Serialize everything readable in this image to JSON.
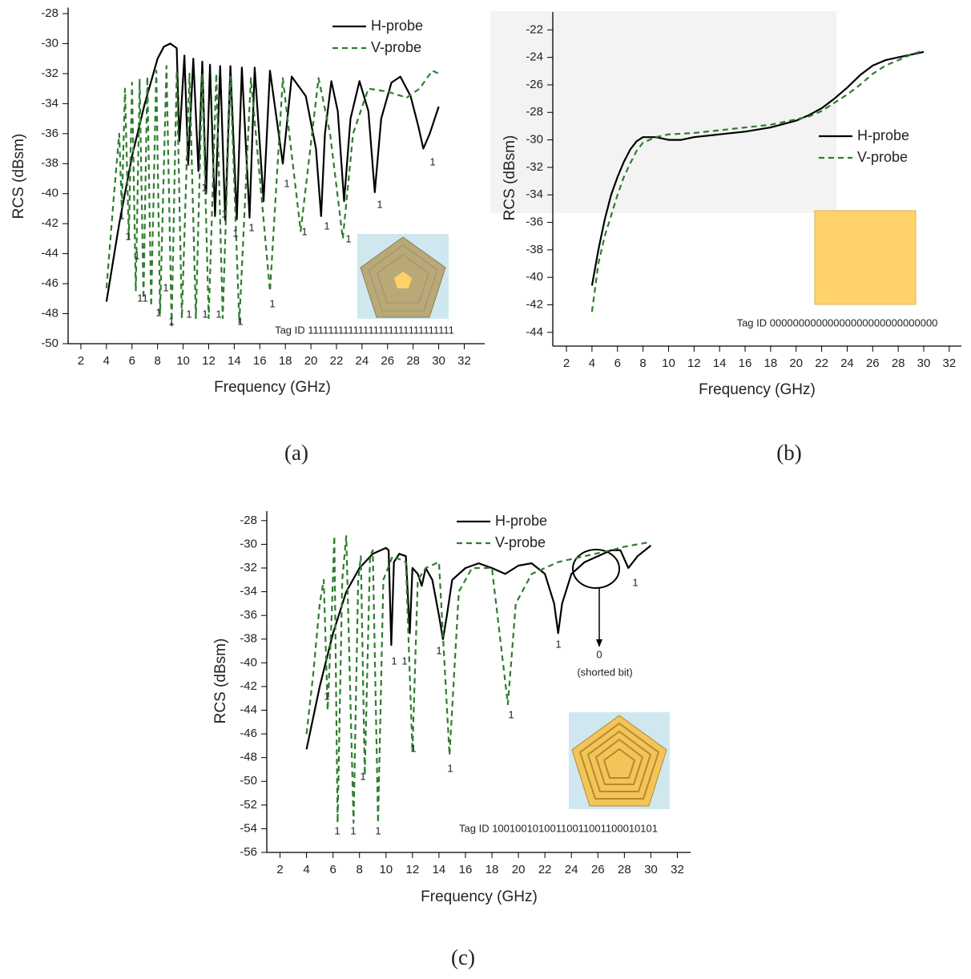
{
  "chart_data": [
    {
      "type": "line",
      "caption": "(a)",
      "xlabel": "Frequency (GHz)",
      "ylabel": "RCS (dBsm)",
      "xlim": [
        1,
        33.6
      ],
      "xticks": [
        2,
        4,
        6,
        8,
        10,
        12,
        14,
        16,
        18,
        20,
        22,
        24,
        26,
        28,
        30,
        32
      ],
      "ylim": [
        -50,
        -27.6
      ],
      "yticks": [
        -28,
        -30,
        -32,
        -34,
        -36,
        -38,
        -40,
        -42,
        -44,
        -46,
        -48,
        -50
      ],
      "series": [
        {
          "name": "H-probe",
          "color": "#000000",
          "linestyle": "solid",
          "x": [
            4,
            5,
            6,
            7,
            8,
            8.5,
            9,
            9.5,
            9.7,
            10.1,
            10.4,
            10.8,
            11.2,
            11.5,
            11.8,
            12.1,
            12.5,
            12.9,
            13.3,
            13.7,
            14.2,
            14.6,
            15.2,
            15.6,
            16.3,
            16.8,
            17.8,
            18.5,
            19.6,
            20.4,
            20.8,
            21.1,
            21.6,
            22.1,
            22.6,
            23.1,
            23.8,
            24.5,
            25,
            25.5,
            26.3,
            27,
            27.8,
            28.4,
            28.8,
            29.3,
            30
          ],
          "values": [
            -47.2,
            -42,
            -37.5,
            -34,
            -31,
            -30.2,
            -30,
            -30.3,
            -36.5,
            -30.8,
            -38,
            -31,
            -38.5,
            -31.2,
            -40,
            -31.4,
            -41.5,
            -31.5,
            -41.8,
            -31.5,
            -41.7,
            -31.6,
            -41.6,
            -31.6,
            -40.5,
            -31.8,
            -38,
            -32.2,
            -33.5,
            -37,
            -41.5,
            -36,
            -32.5,
            -34.5,
            -40.5,
            -35,
            -32.5,
            -34.5,
            -39.9,
            -35,
            -32.6,
            -32.2,
            -33.5,
            -35.5,
            -37,
            -36,
            -34.2
          ]
        },
        {
          "name": "V-probe",
          "color": "#2f7d2f",
          "linestyle": "dashed",
          "x": [
            4,
            4.6,
            5.0,
            5.2,
            5.45,
            5.75,
            6.0,
            6.3,
            6.6,
            6.9,
            7.2,
            7.5,
            7.9,
            8.2,
            8.7,
            9.1,
            9.5,
            9.9,
            10.5,
            11.0,
            11.5,
            12.0,
            12.6,
            13.1,
            13.7,
            14.4,
            15.3,
            16.8,
            17.8,
            19.2,
            20.6,
            21.5,
            22.5,
            23.3,
            24.5,
            26,
            27.5,
            28.5,
            29.5,
            30
          ],
          "values": [
            -46.3,
            -40,
            -36,
            -41,
            -33,
            -43,
            -32.6,
            -46.5,
            -32.4,
            -47,
            -32.2,
            -47.5,
            -31.8,
            -48,
            -31.5,
            -48.8,
            -31.8,
            -48.3,
            -32,
            -48.3,
            -32,
            -48.3,
            -32,
            -48.3,
            -32.2,
            -48.6,
            -32.3,
            -46.5,
            -32.3,
            -42.5,
            -32.3,
            -36,
            -43,
            -36,
            -33,
            -33.2,
            -33.6,
            -33,
            -31.8,
            -32
          ]
        }
      ],
      "tag_id": "Tag ID 11111111111111111111111111111",
      "annotations": [
        "1",
        "1",
        "1",
        "11",
        "1",
        "1",
        "1",
        "1",
        "1",
        "1",
        "1",
        "1",
        "1",
        "1",
        "1",
        "1",
        "1",
        "1",
        "1",
        "1",
        "1",
        "1",
        "1"
      ]
    },
    {
      "type": "line",
      "caption": "(b)",
      "xlabel": "Frequency (GHz)",
      "ylabel": "RCS (dBsm)",
      "xlim": [
        0.93,
        32.95
      ],
      "xticks": [
        2,
        4,
        6,
        8,
        10,
        12,
        14,
        16,
        18,
        20,
        22,
        24,
        26,
        28,
        30,
        32
      ],
      "ylim": [
        -45,
        -20.7
      ],
      "yticks": [
        -22,
        -24,
        -26,
        -28,
        -30,
        -32,
        -34,
        -36,
        -38,
        -40,
        -42,
        -44
      ],
      "series": [
        {
          "name": "H-probe",
          "color": "#000000",
          "linestyle": "solid",
          "x": [
            4,
            4.5,
            5,
            5.5,
            6,
            6.5,
            7,
            7.5,
            8,
            9,
            10,
            11,
            12,
            14,
            16,
            18,
            20,
            21,
            22,
            23,
            24,
            25,
            26,
            27,
            28,
            29,
            30
          ],
          "values": [
            -40.6,
            -38,
            -35.8,
            -34,
            -32.7,
            -31.6,
            -30.7,
            -30.1,
            -29.8,
            -29.8,
            -30,
            -30,
            -29.8,
            -29.6,
            -29.4,
            -29.1,
            -28.6,
            -28.2,
            -27.7,
            -27,
            -26.2,
            -25.3,
            -24.6,
            -24.2,
            -24,
            -23.8,
            -23.6
          ]
        },
        {
          "name": "V-probe",
          "color": "#2f7d2f",
          "linestyle": "dashed",
          "x": [
            4,
            4.5,
            5,
            5.5,
            6,
            6.5,
            7,
            7.5,
            8,
            9,
            10,
            12,
            14,
            16,
            18,
            20,
            21,
            22,
            23,
            24,
            25,
            26,
            27,
            28,
            29,
            30
          ],
          "values": [
            -42.5,
            -39,
            -37,
            -35.5,
            -34,
            -32.7,
            -31.7,
            -30.8,
            -30.2,
            -29.8,
            -29.6,
            -29.5,
            -29.3,
            -29.1,
            -28.9,
            -28.5,
            -28.3,
            -27.9,
            -27.3,
            -26.7,
            -26,
            -25.2,
            -24.6,
            -24.2,
            -23.8,
            -23.5
          ]
        }
      ],
      "tag_id": "Tag ID 00000000000000000000000000000",
      "annotations": []
    },
    {
      "type": "line",
      "caption": "(c)",
      "xlabel": "Frequency (GHz)",
      "ylabel": "RCS (dBsm)",
      "xlim": [
        1,
        33
      ],
      "xticks": [
        2,
        4,
        6,
        8,
        10,
        12,
        14,
        16,
        18,
        20,
        22,
        24,
        26,
        28,
        30,
        32
      ],
      "ylim": [
        -56,
        -27.2
      ],
      "yticks": [
        -28,
        -30,
        -32,
        -34,
        -36,
        -38,
        -40,
        -42,
        -44,
        -46,
        -48,
        -50,
        -52,
        -54,
        -56
      ],
      "series": [
        {
          "name": "H-probe",
          "color": "#000000",
          "linestyle": "solid",
          "x": [
            4,
            5,
            6,
            7,
            8,
            9,
            10,
            10.2,
            10.4,
            10.6,
            11,
            11.5,
            11.8,
            12,
            12.4,
            12.7,
            13,
            13.5,
            14,
            14.3,
            14.6,
            15,
            16,
            17,
            18,
            19,
            20,
            21,
            22,
            22.7,
            23,
            23.3,
            24,
            25,
            26,
            27,
            27.7,
            28.3,
            29,
            30
          ],
          "values": [
            -47.3,
            -42,
            -37.5,
            -34,
            -32,
            -30.8,
            -30.3,
            -30.5,
            -38.5,
            -31.5,
            -30.8,
            -31,
            -37.5,
            -32,
            -32.5,
            -33.5,
            -32,
            -33,
            -36,
            -38,
            -36,
            -33,
            -32,
            -31.6,
            -32,
            -32.5,
            -31.8,
            -31.6,
            -32.5,
            -35,
            -37.5,
            -35,
            -32.5,
            -31.5,
            -31,
            -30.5,
            -30.5,
            -32,
            -31,
            -30.1
          ]
        },
        {
          "name": "V-probe",
          "color": "#2f7d2f",
          "linestyle": "dashed",
          "x": [
            4,
            4.5,
            5,
            5.3,
            5.6,
            5.9,
            6.1,
            6.35,
            6.7,
            7.0,
            7.55,
            7.9,
            8.1,
            8.4,
            8.8,
            9.0,
            9.4,
            9.8,
            10.5,
            11.5,
            12.0,
            12.4,
            13,
            14,
            14.8,
            15.5,
            16.5,
            18,
            19.2,
            19.8,
            21,
            23,
            25,
            27,
            28,
            29,
            30
          ],
          "values": [
            -46,
            -41,
            -35,
            -33,
            -44,
            -36,
            -29.3,
            -53.5,
            -33,
            -29.3,
            -53.5,
            -33,
            -31,
            -49.5,
            -31,
            -30.5,
            -53.5,
            -33,
            -31,
            -31.5,
            -47.5,
            -33,
            -32,
            -31.5,
            -47.8,
            -34,
            -32,
            -32,
            -43.5,
            -35,
            -32.5,
            -31.5,
            -31,
            -30.5,
            -30.2,
            -30,
            -29.8
          ]
        }
      ],
      "tag_id": "Tag ID 10010010100110011001100010101",
      "annotations": [
        "1",
        "1",
        "1",
        "1",
        "1",
        "1",
        "1",
        "1",
        "1",
        "1",
        "1",
        "1",
        "1",
        "0",
        "(shorted bit)"
      ]
    }
  ]
}
